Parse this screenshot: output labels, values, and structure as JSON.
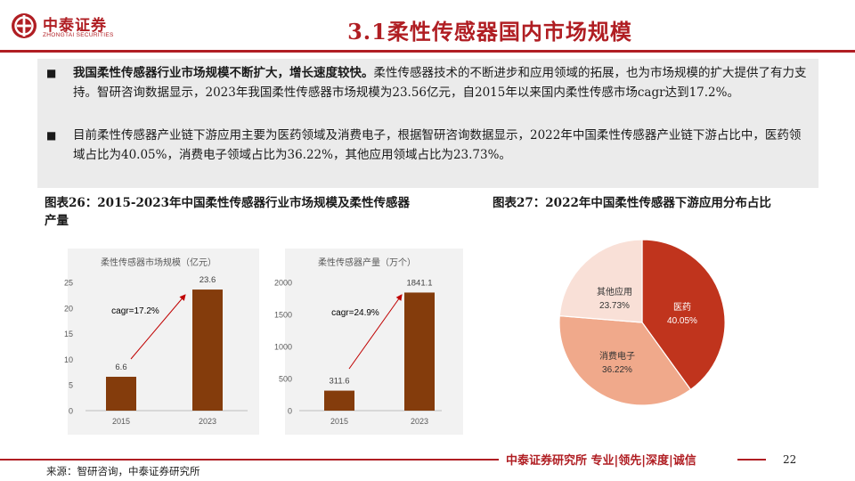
{
  "header": {
    "brand_cn": "中泰证券",
    "brand_en": "ZHONGTAI SECURITIES",
    "title": "3.1柔性传感器国内市场规模"
  },
  "summary": {
    "bullets": [
      {
        "bold": "我国柔性传感器行业市场规模不断扩大，增长速度较快。",
        "text": "柔性传感器技术的不断进步和应用领域的拓展，也为市场规模的扩大提供了有力支持。智研咨询数据显示，2023年我国柔性传感器市场规模为23.56亿元，自2015年以来国内柔性传感市场cagr达到17.2%。"
      },
      {
        "bold": "",
        "text": "目前柔性传感器产业链下游应用主要为医药领域及消费电子，根据智研咨询数据显示，2022年中国柔性传感器产业链下游占比中，医药领域占比为40.05%，消费电子领域占比为36.22%，其他应用领域占比为23.73%。"
      }
    ]
  },
  "figures": {
    "fig26_title": "图表26：2015-2023年中国柔性传感器行业市场规模及柔性传感器产量",
    "fig27_title": "图表27：2022年中国柔性传感器下游应用分布占比"
  },
  "chart_data": [
    {
      "type": "bar",
      "title": "柔性传感器市场规模（亿元）",
      "categories": [
        "2015",
        "2023"
      ],
      "values": [
        6.6,
        23.6
      ],
      "value_labels": [
        "6.6",
        "23.6"
      ],
      "ylim": [
        0,
        25
      ],
      "yticks": [
        0,
        5,
        10,
        15,
        20,
        25
      ],
      "ytick_labels": [
        "0",
        "5",
        "10",
        "15",
        "20",
        "25"
      ],
      "annotation": "cagr=17.2%",
      "color": "#843c0c",
      "grid": false
    },
    {
      "type": "bar",
      "title": "柔性传感器产量（万个）",
      "categories": [
        "2015",
        "2023"
      ],
      "values": [
        311.6,
        1841.1
      ],
      "value_labels": [
        "311.6",
        "1841.1"
      ],
      "ylim": [
        0,
        2000
      ],
      "yticks": [
        0,
        500,
        1000,
        1500,
        2000
      ],
      "ytick_labels": [
        "0",
        "500",
        "1000",
        "1500",
        "2000"
      ],
      "annotation": "cagr=24.9%",
      "color": "#843c0c",
      "grid": false
    },
    {
      "type": "pie",
      "slices": [
        {
          "label": "医药",
          "value": 40.05,
          "value_label": "40.05%",
          "color": "#c0341d",
          "text_color": "#ffffff"
        },
        {
          "label": "消费电子",
          "value": 36.22,
          "value_label": "36.22%",
          "color": "#f0a98b",
          "text_color": "#333333"
        },
        {
          "label": "其他应用",
          "value": 23.73,
          "value_label": "23.73%",
          "color": "#f9e0d7",
          "text_color": "#333333"
        }
      ]
    }
  ],
  "footer": {
    "slogan": "中泰证券研究所 专业|领先|深度|诚信",
    "page": "22",
    "source": "来源：智研咨询，中泰证券研究所"
  }
}
